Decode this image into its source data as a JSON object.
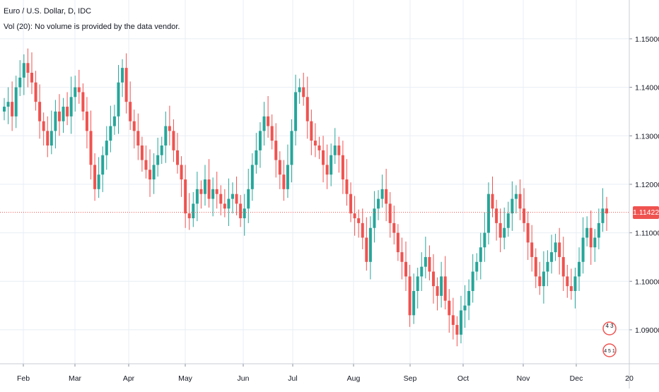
{
  "header": {
    "title": "Euro / U.S. Dollar, D, IDC",
    "volume_note": "Vol (20): No volume is provided by the data vendor."
  },
  "colors": {
    "up": "#26a69a",
    "down": "#ef5350",
    "grid": "#e8eef4",
    "axis_text": "#131722",
    "last_price_line": "#ef5350"
  },
  "price_axis": {
    "ticks": [
      "1.15000",
      "1.14000",
      "1.13000",
      "1.12000",
      "1.11000",
      "1.10000",
      "1.09000"
    ],
    "last_price": "1.11422"
  },
  "time_axis": {
    "ticks": [
      "Feb",
      "Mar",
      "Apr",
      "May",
      "Jun",
      "Jul",
      "Aug",
      "Sep",
      "Oct",
      "Nov",
      "Dec",
      "20"
    ]
  },
  "badges": {
    "top": "4 3",
    "bottom": "4 5 1"
  },
  "chart_data": {
    "type": "candlestick",
    "title": "Euro / U.S. Dollar, D, IDC",
    "y_range": [
      1.083,
      1.158
    ],
    "series": [
      {
        "name": "Euro / U.S. Dollar",
        "closes": [
          1.136,
          1.137,
          1.134,
          1.14,
          1.142,
          1.145,
          1.143,
          1.141,
          1.137,
          1.133,
          1.131,
          1.128,
          1.131,
          1.135,
          1.133,
          1.136,
          1.134,
          1.138,
          1.14,
          1.139,
          1.135,
          1.131,
          1.124,
          1.119,
          1.122,
          1.126,
          1.129,
          1.132,
          1.134,
          1.141,
          1.144,
          1.137,
          1.133,
          1.131,
          1.128,
          1.125,
          1.123,
          1.121,
          1.124,
          1.126,
          1.128,
          1.132,
          1.131,
          1.127,
          1.124,
          1.121,
          1.114,
          1.113,
          1.116,
          1.119,
          1.118,
          1.121,
          1.117,
          1.119,
          1.118,
          1.116,
          1.115,
          1.117,
          1.118,
          1.116,
          1.113,
          1.115,
          1.119,
          1.124,
          1.127,
          1.131,
          1.134,
          1.132,
          1.129,
          1.125,
          1.122,
          1.119,
          1.124,
          1.131,
          1.139,
          1.14,
          1.138,
          1.133,
          1.129,
          1.128,
          1.127,
          1.124,
          1.122,
          1.126,
          1.128,
          1.126,
          1.121,
          1.118,
          1.114,
          1.113,
          1.112,
          1.109,
          1.104,
          1.111,
          1.115,
          1.117,
          1.119,
          1.116,
          1.112,
          1.11,
          1.106,
          1.104,
          1.101,
          1.093,
          1.098,
          1.101,
          1.103,
          1.105,
          1.102,
          1.099,
          1.097,
          1.101,
          1.096,
          1.093,
          1.091,
          1.089,
          1.094,
          1.095,
          1.098,
          1.102,
          1.104,
          1.107,
          1.11,
          1.118,
          1.115,
          1.112,
          1.109,
          1.111,
          1.114,
          1.117,
          1.118,
          1.115,
          1.112,
          1.108,
          1.105,
          1.101,
          1.099,
          1.102,
          1.104,
          1.106,
          1.108,
          1.105,
          1.101,
          1.099,
          1.098,
          1.101,
          1.104,
          1.109,
          1.111,
          1.107,
          1.109,
          1.112,
          1.115,
          1.114
        ]
      }
    ]
  }
}
